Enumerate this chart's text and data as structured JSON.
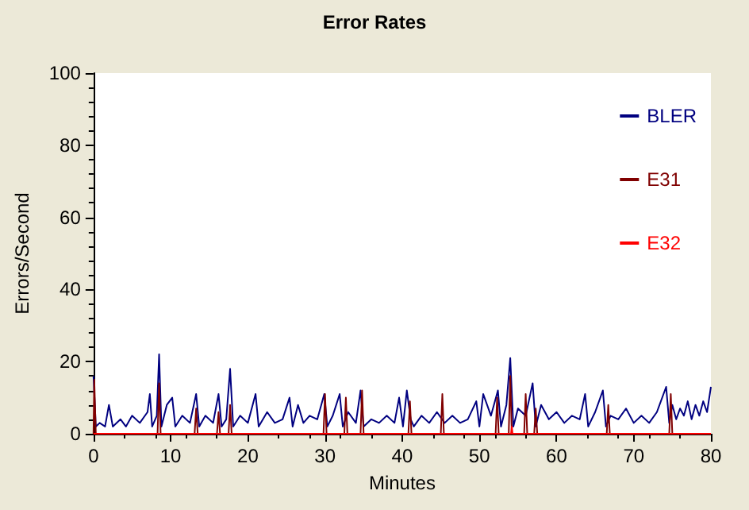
{
  "chart_data": {
    "type": "line",
    "title": "Error Rates",
    "xlabel": "Minutes",
    "ylabel": "Errors/Second",
    "xlim": [
      0,
      80
    ],
    "xticks": [
      0,
      10,
      20,
      30,
      40,
      50,
      60,
      70,
      80
    ],
    "ylim": [
      0,
      100
    ],
    "yticks": [
      0,
      20,
      40,
      60,
      80,
      100
    ],
    "grid": false,
    "legend": "top right",
    "marker": "none",
    "line_style": "solid",
    "series": [
      {
        "name": "BLER",
        "color": "#000080",
        "x": [
          0,
          0.3,
          0.8,
          1.5,
          2,
          2.5,
          3.5,
          4.2,
          5,
          6,
          7,
          7.3,
          7.6,
          8.2,
          8.5,
          8.8,
          9.5,
          10.2,
          10.6,
          11.5,
          12.5,
          13.3,
          13.7,
          14.5,
          15.5,
          16.2,
          16.6,
          17.2,
          17.7,
          18.1,
          19,
          20,
          21,
          21.4,
          22.5,
          23.5,
          24.5,
          25.4,
          25.8,
          26.5,
          27.2,
          28,
          29,
          29.9,
          30.3,
          31,
          31.9,
          32.3,
          33,
          34,
          34.6,
          35,
          36,
          37,
          38,
          39,
          39.6,
          40.1,
          40.6,
          41.1,
          41.5,
          42.5,
          43.5,
          44.5,
          45.5,
          46.5,
          47.5,
          48.5,
          49.6,
          50,
          50.5,
          51.5,
          52.4,
          52.8,
          53.5,
          54,
          54.4,
          55,
          56,
          56.9,
          57.3,
          58,
          59,
          60,
          61,
          62,
          63,
          63.7,
          64.1,
          65,
          66,
          66.4,
          67,
          68,
          69,
          70,
          71,
          72,
          73,
          74.2,
          74.6,
          75,
          75.5,
          76,
          76.5,
          77,
          77.5,
          78,
          78.5,
          79,
          79.5,
          80
        ],
        "values": [
          16,
          2,
          3,
          2,
          8,
          2,
          4,
          2,
          5,
          3,
          6,
          11,
          2,
          5,
          22,
          2,
          8,
          10,
          2,
          5,
          3,
          11,
          2,
          5,
          3,
          11,
          2,
          4,
          18,
          2,
          5,
          3,
          11,
          2,
          6,
          3,
          4,
          10,
          2,
          8,
          3,
          5,
          4,
          11,
          2,
          5,
          11,
          2,
          6,
          3,
          12,
          2,
          4,
          3,
          5,
          3,
          10,
          2,
          12,
          4,
          2,
          5,
          3,
          6,
          3,
          5,
          3,
          4,
          9,
          2,
          11,
          5,
          12,
          2,
          8,
          21,
          2,
          7,
          5,
          14,
          2,
          8,
          4,
          6,
          3,
          5,
          4,
          11,
          2,
          6,
          12,
          2,
          5,
          4,
          7,
          3,
          5,
          3,
          6,
          13,
          3,
          8,
          4,
          7,
          5,
          9,
          4,
          8,
          5,
          9,
          6,
          13
        ]
      },
      {
        "name": "E31",
        "color": "#800000",
        "x": [
          0,
          0.1,
          0.3,
          8.3,
          8.5,
          8.7,
          13.1,
          13.3,
          13.5,
          16,
          16.2,
          16.4,
          17.5,
          17.7,
          17.9,
          29.8,
          30,
          30.2,
          32.5,
          32.7,
          32.9,
          34.6,
          34.8,
          35,
          40.8,
          41,
          41.2,
          45,
          45.2,
          45.4,
          52.1,
          52.3,
          52.5,
          53.8,
          54,
          54.2,
          55.8,
          56,
          56.2,
          57.1,
          57.3,
          57.5,
          66.5,
          66.7,
          66.9,
          74.6,
          74.8,
          75,
          80
        ],
        "values": [
          0,
          15,
          0,
          0,
          14,
          0,
          0,
          7,
          0,
          0,
          6,
          0,
          0,
          8,
          0,
          0,
          11,
          0,
          0,
          10,
          0,
          0,
          12,
          0,
          0,
          9,
          0,
          0,
          11,
          0,
          0,
          10,
          0,
          0,
          16,
          0,
          0,
          11,
          0,
          0,
          7,
          0,
          0,
          8,
          0,
          0,
          11,
          0,
          0
        ]
      },
      {
        "name": "E32",
        "color": "#ff0000",
        "x": [
          0,
          54.1,
          54.2,
          54.3,
          80
        ],
        "values": [
          0,
          0,
          2,
          0,
          0
        ]
      }
    ]
  }
}
